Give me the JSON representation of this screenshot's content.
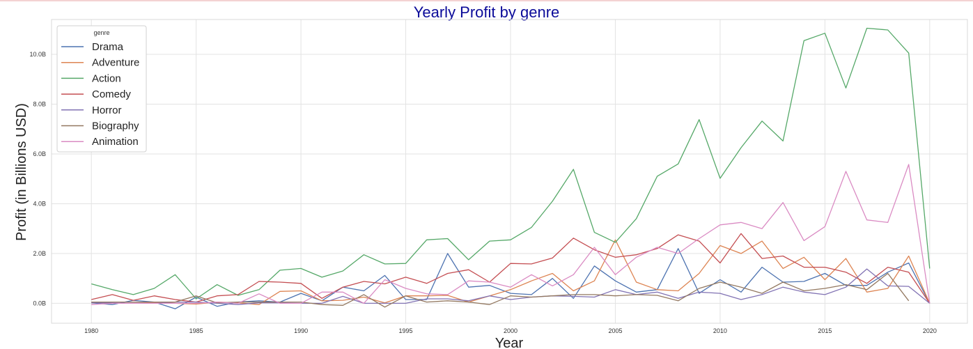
{
  "chart_data": {
    "type": "line",
    "title": "Yearly Profit by genre",
    "xlabel": "Year",
    "ylabel": "Profit (in Billions USD)",
    "xlim": [
      1978.1,
      2021.8
    ],
    "ylim": [
      -0.8,
      11.4
    ],
    "x_ticks": [
      1980,
      1985,
      1990,
      1995,
      2000,
      2005,
      2010,
      2015,
      2020
    ],
    "y_ticks": [
      0,
      2,
      4,
      6,
      8,
      10
    ],
    "y_tick_labels": [
      "0.0B",
      "2.0B",
      "4.0B",
      "6.0B",
      "8.0B",
      "10.0B"
    ],
    "legend_title": "genre",
    "legend_position": "top-left",
    "grid": true,
    "x": [
      1980,
      1981,
      1982,
      1983,
      1984,
      1985,
      1986,
      1987,
      1988,
      1989,
      1990,
      1991,
      1992,
      1993,
      1994,
      1995,
      1996,
      1997,
      1998,
      1999,
      2000,
      2001,
      2002,
      2003,
      2004,
      2005,
      2006,
      2007,
      2008,
      2009,
      2010,
      2011,
      2012,
      2013,
      2014,
      2015,
      2016,
      2017,
      2018,
      2019,
      2020
    ],
    "series": [
      {
        "name": "Drama",
        "color": "#4c72b0",
        "values": [
          0.02,
          -0.05,
          0.12,
          0.05,
          -0.22,
          0.25,
          -0.12,
          0.05,
          0.1,
          0.05,
          0.4,
          0.1,
          0.65,
          0.5,
          1.12,
          0.15,
          0.15,
          2.0,
          0.65,
          0.72,
          0.4,
          0.35,
          1.0,
          0.2,
          1.5,
          0.9,
          0.45,
          0.55,
          2.2,
          0.4,
          0.95,
          0.45,
          1.45,
          0.85,
          0.88,
          1.2,
          0.72,
          0.72,
          1.25,
          1.62,
          0.0
        ]
      },
      {
        "name": "Adventure",
        "color": "#dd8452",
        "values": [
          0.05,
          0.0,
          0.0,
          0.03,
          0.0,
          -0.03,
          0.05,
          0.02,
          -0.05,
          0.48,
          0.5,
          0.1,
          0.12,
          0.25,
          0.02,
          0.3,
          0.3,
          0.32,
          0.05,
          0.3,
          0.55,
          0.9,
          1.2,
          0.5,
          0.9,
          2.55,
          0.85,
          0.55,
          0.5,
          1.2,
          2.32,
          2.0,
          2.5,
          1.4,
          1.85,
          0.95,
          1.8,
          0.45,
          0.6,
          1.9,
          0.0
        ]
      },
      {
        "name": "Action",
        "color": "#55a868",
        "values": [
          0.78,
          0.55,
          0.35,
          0.6,
          1.15,
          0.18,
          0.75,
          0.32,
          0.55,
          1.33,
          1.4,
          1.05,
          1.3,
          1.95,
          1.58,
          1.6,
          2.55,
          2.6,
          1.75,
          2.5,
          2.55,
          3.05,
          4.1,
          5.38,
          2.85,
          2.45,
          3.4,
          5.1,
          5.6,
          7.38,
          5.02,
          6.25,
          7.32,
          6.52,
          10.55,
          10.85,
          8.65,
          11.05,
          10.98,
          10.05,
          1.4
        ]
      },
      {
        "name": "Comedy",
        "color": "#c44e52",
        "values": [
          0.15,
          0.35,
          0.12,
          0.3,
          0.15,
          0.05,
          0.3,
          0.35,
          0.88,
          0.85,
          0.8,
          0.2,
          0.65,
          0.88,
          0.78,
          1.05,
          0.8,
          1.2,
          1.35,
          0.85,
          1.6,
          1.58,
          1.82,
          2.62,
          2.15,
          1.85,
          1.95,
          2.2,
          2.75,
          2.5,
          1.62,
          2.8,
          1.8,
          1.9,
          1.45,
          1.45,
          1.25,
          0.8,
          1.45,
          1.25,
          0.0
        ]
      },
      {
        "name": "Horror",
        "color": "#8172b3",
        "values": [
          0.02,
          0.02,
          0.0,
          0.0,
          0.05,
          0.05,
          0.0,
          -0.05,
          0.02,
          0.02,
          0.0,
          0.0,
          0.28,
          0.0,
          0.0,
          0.0,
          0.18,
          0.18,
          0.1,
          0.3,
          0.15,
          0.25,
          0.3,
          0.28,
          0.25,
          0.55,
          0.35,
          0.45,
          0.2,
          0.45,
          0.4,
          0.15,
          0.35,
          0.65,
          0.45,
          0.35,
          0.65,
          1.38,
          0.7,
          0.68,
          0.0
        ]
      },
      {
        "name": "Biography",
        "color": "#937860",
        "values": [
          0.05,
          0.05,
          0.05,
          0.05,
          0.05,
          0.3,
          0.02,
          0.05,
          0.05,
          0.05,
          0.05,
          -0.05,
          -0.08,
          0.35,
          -0.15,
          0.3,
          0.05,
          0.1,
          0.05,
          -0.05,
          0.3,
          0.25,
          0.3,
          0.35,
          0.35,
          0.3,
          0.35,
          0.32,
          0.1,
          0.6,
          0.85,
          0.65,
          0.4,
          0.85,
          0.5,
          0.6,
          0.75,
          0.55,
          1.2,
          0.1,
          null
        ]
      },
      {
        "name": "Animation",
        "color": "#da8bc3",
        "values": [
          -0.05,
          0.0,
          0.0,
          0.0,
          0.0,
          0.0,
          0.05,
          0.0,
          0.38,
          0.0,
          0.0,
          0.45,
          0.45,
          0.0,
          0.95,
          0.6,
          0.38,
          0.35,
          0.9,
          0.85,
          0.65,
          1.15,
          0.7,
          1.15,
          2.25,
          1.15,
          1.85,
          2.25,
          2.0,
          2.6,
          3.15,
          3.25,
          3.0,
          4.05,
          2.52,
          3.08,
          5.3,
          3.35,
          3.25,
          5.58,
          0.0
        ]
      }
    ]
  }
}
